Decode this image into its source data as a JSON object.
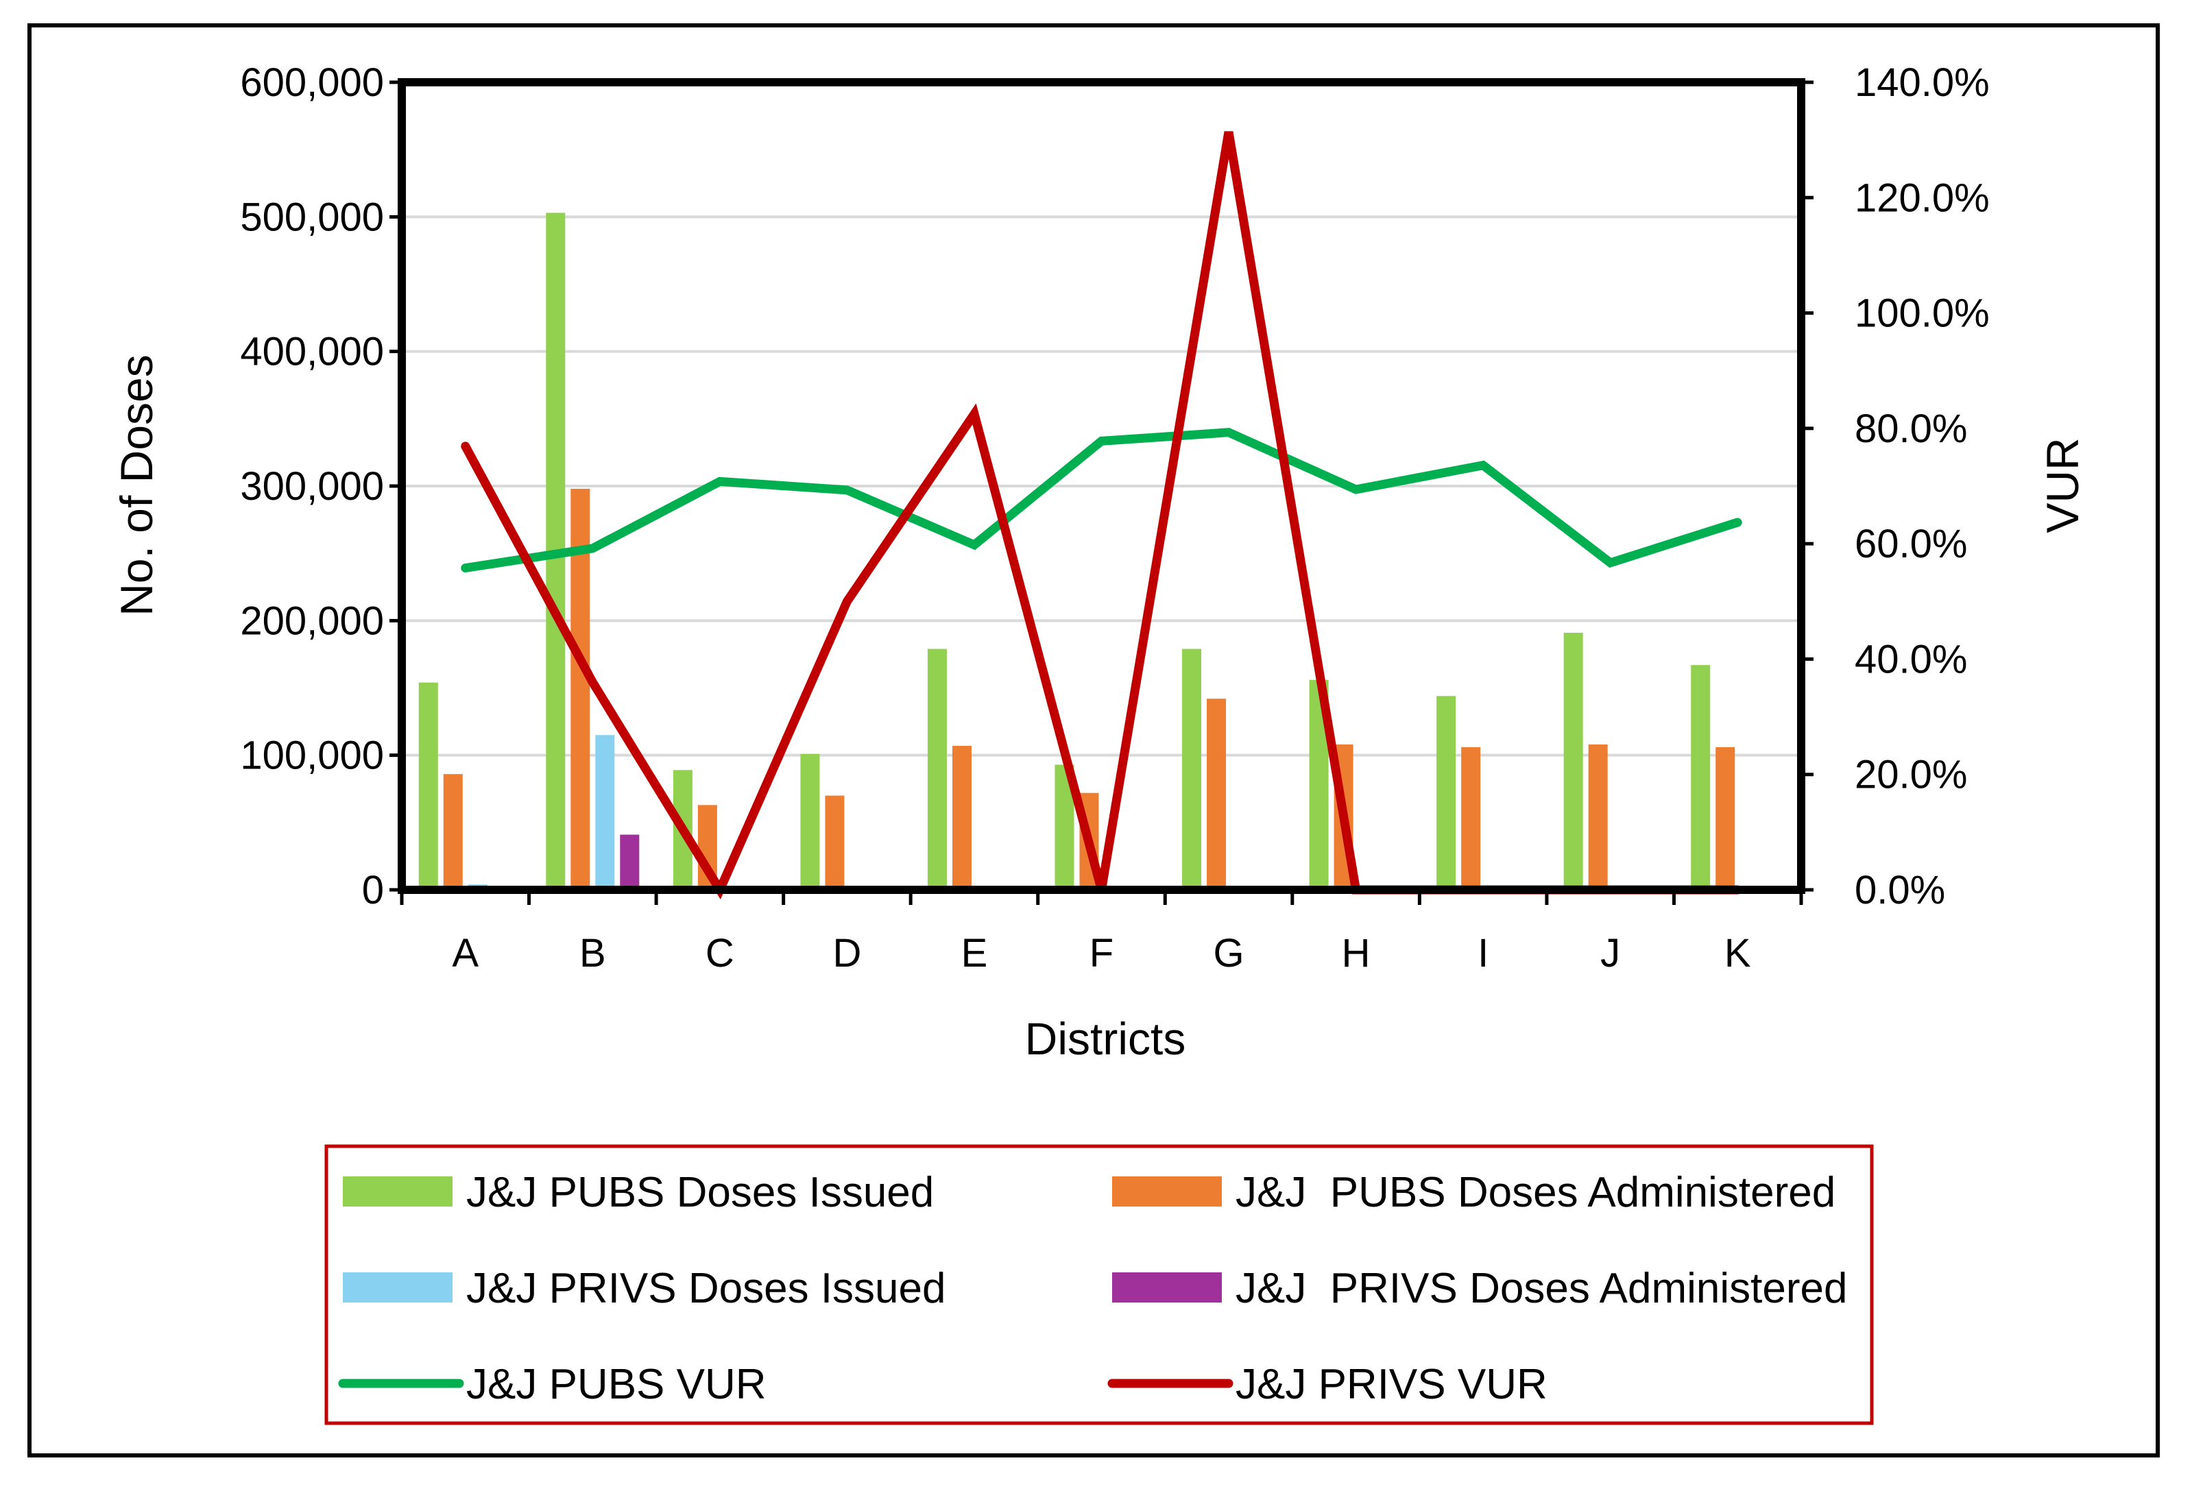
{
  "chart_data": {
    "type": "bar",
    "title": "",
    "xlabel": "Districts",
    "ylabel": "No. of Doses",
    "y2label": "VUR",
    "ylim": [
      0,
      600000
    ],
    "y2lim": [
      0,
      140
    ],
    "yticks": [
      "0",
      "100,000",
      "200,000",
      "300,000",
      "400,000",
      "500,000",
      "600,000"
    ],
    "y2ticks": [
      "0.0%",
      "20.0%",
      "40.0%",
      "60.0%",
      "80.0%",
      "100.0%",
      "120.0%",
      "140.0%"
    ],
    "legend_position": "bottom",
    "categories": [
      "A",
      "B",
      "C",
      "D",
      "E",
      "F",
      "G",
      "H",
      "I",
      "J",
      "K"
    ],
    "series": [
      {
        "name": "J&J PUBS Doses Issued",
        "kind": "bar",
        "axis": "left",
        "color": "#92D050",
        "values": [
          154000,
          503000,
          89000,
          101000,
          179000,
          93000,
          179000,
          156000,
          144000,
          191000,
          167000
        ]
      },
      {
        "name": "J&J  PUBS Doses Administered",
        "kind": "bar",
        "axis": "left",
        "color": "#ED7D31",
        "values": [
          86000,
          298000,
          63000,
          70000,
          107000,
          72000,
          142000,
          108000,
          106000,
          108000,
          106000
        ]
      },
      {
        "name": "J&J PRIVS Doses Issued",
        "kind": "bar",
        "axis": "left",
        "color": "#89D1F0",
        "values": [
          4000,
          115000,
          0,
          0,
          0,
          0,
          0,
          0,
          0,
          0,
          0
        ]
      },
      {
        "name": "J&J  PRIVS Doses Administered",
        "kind": "bar",
        "axis": "left",
        "color": "#A0309A",
        "values": [
          3000,
          41000,
          0,
          0,
          0,
          0,
          2000,
          0,
          0,
          0,
          0
        ]
      },
      {
        "name": "J&J PUBS VUR",
        "kind": "line",
        "axis": "right",
        "color": "#00B050",
        "values": [
          55.8,
          59.2,
          70.8,
          69.3,
          59.8,
          77.8,
          79.3,
          69.4,
          73.6,
          56.7,
          63.7
        ]
      },
      {
        "name": "J&J PRIVS VUR",
        "kind": "line",
        "axis": "right",
        "color": "#C00000",
        "values": [
          76.9,
          36.0,
          0.0,
          50.0,
          82.5,
          0.0,
          131.4,
          0.0,
          0.0,
          0.0,
          0.0
        ]
      }
    ]
  }
}
